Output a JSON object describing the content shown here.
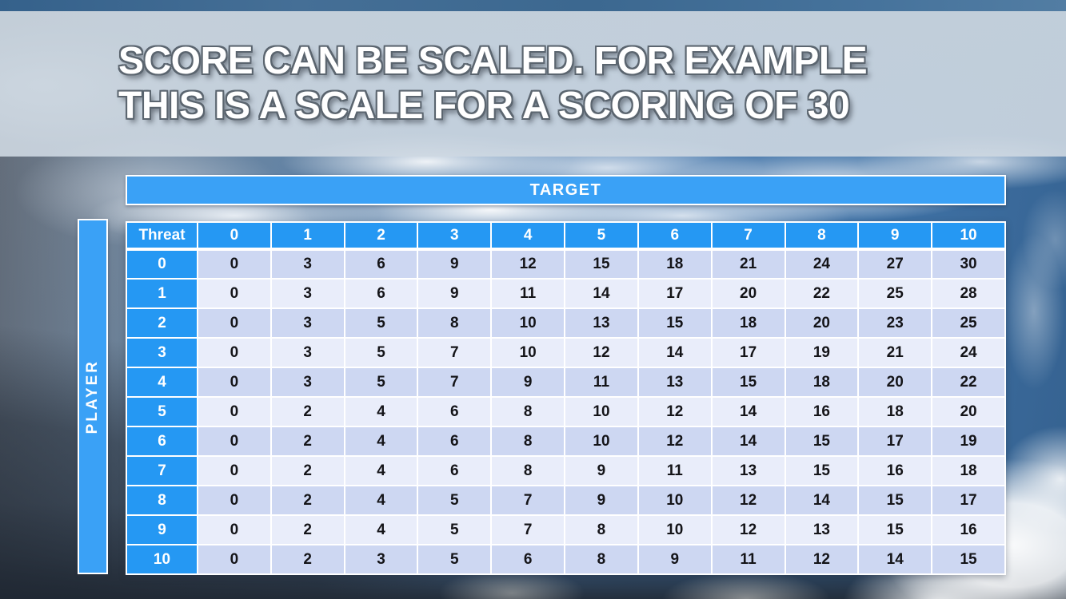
{
  "slide": {
    "title_line1": "SCORE CAN BE SCALED. FOR EXAMPLE",
    "title_line2": "THIS IS A SCALE FOR A SCORING OF 30"
  },
  "table": {
    "target_label": "TARGET",
    "player_label": "PLAYER",
    "corner_label": "Threat",
    "column_headers": [
      "0",
      "1",
      "2",
      "3",
      "4",
      "5",
      "6",
      "7",
      "8",
      "9",
      "10"
    ],
    "row_headers": [
      "0",
      "1",
      "2",
      "3",
      "4",
      "5",
      "6",
      "7",
      "8",
      "9",
      "10"
    ],
    "rows": [
      [
        0,
        3,
        6,
        9,
        12,
        15,
        18,
        21,
        24,
        27,
        30
      ],
      [
        0,
        3,
        6,
        9,
        11,
        14,
        17,
        20,
        22,
        25,
        28
      ],
      [
        0,
        3,
        5,
        8,
        10,
        13,
        15,
        18,
        20,
        23,
        25
      ],
      [
        0,
        3,
        5,
        7,
        10,
        12,
        14,
        17,
        19,
        21,
        24
      ],
      [
        0,
        3,
        5,
        7,
        9,
        11,
        13,
        15,
        18,
        20,
        22
      ],
      [
        0,
        2,
        4,
        6,
        8,
        10,
        12,
        14,
        16,
        18,
        20
      ],
      [
        0,
        2,
        4,
        6,
        8,
        10,
        12,
        14,
        15,
        17,
        19
      ],
      [
        0,
        2,
        4,
        6,
        8,
        9,
        11,
        13,
        15,
        16,
        18
      ],
      [
        0,
        2,
        4,
        5,
        7,
        9,
        10,
        12,
        14,
        15,
        17
      ],
      [
        0,
        2,
        4,
        5,
        7,
        8,
        10,
        12,
        13,
        15,
        16
      ],
      [
        0,
        2,
        3,
        5,
        6,
        8,
        9,
        11,
        12,
        14,
        15
      ]
    ]
  },
  "colors": {
    "accent_blue": "#2598f3",
    "bar_blue": "#3aa1f6",
    "row_dark": "#cdd7f2",
    "row_light": "#e9edfa",
    "top_strip": "#3c6890",
    "title_band": "#ccd6e0",
    "title_outline": "#5b656f"
  }
}
